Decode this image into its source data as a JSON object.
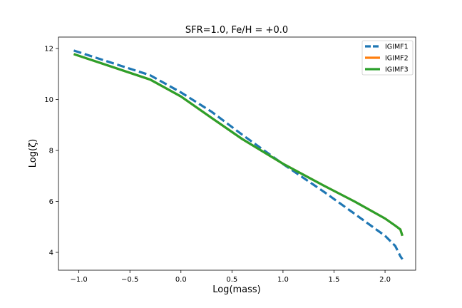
{
  "chart_data": {
    "type": "line",
    "title": "SFR=1.0, Fe/H = +0.0",
    "xlabel": "Log(mass)",
    "ylabel": "Log(ζ)",
    "xlim": [
      -1.2,
      2.3
    ],
    "ylim": [
      3.3,
      12.45
    ],
    "xticks": [
      -1.0,
      -0.5,
      0.0,
      0.5,
      1.0,
      1.5,
      2.0
    ],
    "xtick_labels": [
      "−1.0",
      "−0.5",
      "0.0",
      "0.5",
      "1.0",
      "1.5",
      "2.0"
    ],
    "yticks": [
      4,
      6,
      8,
      10,
      12
    ],
    "ytick_labels": [
      "4",
      "6",
      "8",
      "10",
      "12"
    ],
    "grid": false,
    "legend_position": "top-right",
    "series": [
      {
        "name": "IGIMF1",
        "color": "#1f77b4",
        "style": "dashed",
        "x": [
          -1.05,
          -0.3,
          0.0,
          0.3,
          0.6,
          1.0,
          1.4,
          1.7,
          2.0,
          2.1,
          2.15,
          2.17
        ],
        "y": [
          11.92,
          10.95,
          10.28,
          9.52,
          8.62,
          7.47,
          6.38,
          5.52,
          4.65,
          4.25,
          3.85,
          3.73
        ]
      },
      {
        "name": "IGIMF2",
        "color": "#ff7f0e",
        "style": "solid",
        "x": [
          -1.05,
          -0.3,
          0.0,
          0.3,
          0.6,
          1.0,
          1.4,
          1.7,
          2.0,
          2.1,
          2.15,
          2.17
        ],
        "y": [
          11.78,
          10.78,
          10.12,
          9.28,
          8.45,
          7.48,
          6.62,
          6.0,
          5.33,
          5.05,
          4.9,
          4.65
        ]
      },
      {
        "name": "IGIMF3",
        "color": "#2ca02c",
        "style": "solid",
        "x": [
          -1.05,
          -0.3,
          0.0,
          0.3,
          0.6,
          1.0,
          1.4,
          1.7,
          2.0,
          2.1,
          2.15,
          2.17
        ],
        "y": [
          11.78,
          10.78,
          10.12,
          9.28,
          8.45,
          7.48,
          6.62,
          6.0,
          5.33,
          5.05,
          4.9,
          4.65
        ]
      }
    ]
  }
}
